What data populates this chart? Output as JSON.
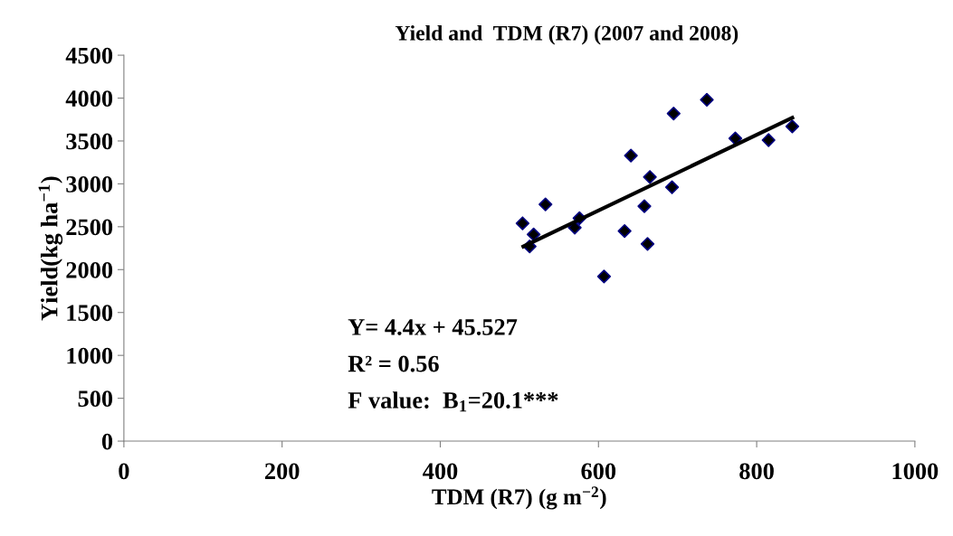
{
  "chart_data": {
    "type": "scatter",
    "title": "Yield and  TDM (R7) (2007 and 2008)",
    "xlabel": "TDM (R7) (g m$^{−2}$)",
    "ylabel": "Yield(kg ha$^{−1}$)",
    "xlim": [
      0,
      1000
    ],
    "xticks": [
      0,
      200,
      400,
      600,
      800,
      1000
    ],
    "ylim": [
      0,
      4500
    ],
    "yticks": [
      0,
      500,
      1000,
      1500,
      2000,
      2500,
      3000,
      3500,
      4000,
      4500
    ],
    "grid": false,
    "legend": false,
    "series": [
      {
        "marker": "diamond",
        "color": "#000080",
        "x": [
          504,
          513,
          518,
          533,
          570,
          576,
          607,
          633,
          641,
          658,
          662,
          665,
          693,
          695,
          737,
          773,
          815,
          845
        ],
        "values": [
          2540,
          2270,
          2410,
          2760,
          2490,
          2600,
          1920,
          2450,
          3330,
          2740,
          2300,
          3080,
          2960,
          3820,
          3980,
          3530,
          3510,
          3670
        ]
      },
      {
        "type": "line",
        "marker": "none",
        "color": "#000000",
        "x": [
          505,
          845
        ],
        "values": [
          2270,
          3770
        ]
      }
    ],
    "annotations": [
      {
        "text": "Y= 4.4x + 45.527"
      },
      {
        "text": "R² = 0.56"
      },
      {
        "text": "F value:  B$_{1}$=20.1***"
      }
    ]
  }
}
